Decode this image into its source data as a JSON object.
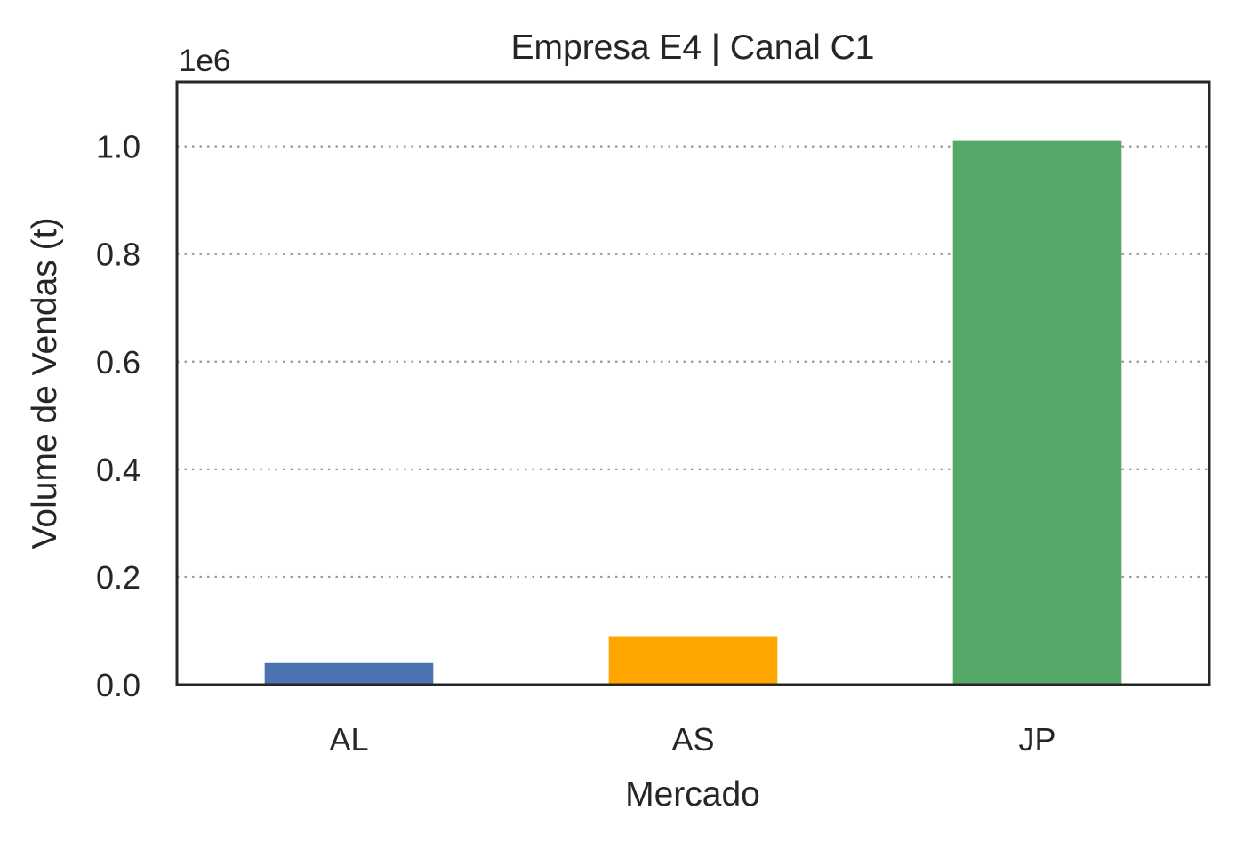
{
  "chart_data": {
    "type": "bar",
    "title": "Empresa E4 | Canal C1",
    "xlabel": "Mercado",
    "ylabel": "Volume de Vendas (t)",
    "scale_label": "1e6",
    "categories": [
      "AL",
      "AS",
      "JP"
    ],
    "values": [
      40000,
      90000,
      1010000
    ],
    "colors": [
      "#4c72b0",
      "#ffa500",
      "#55a868"
    ],
    "ylim": [
      0,
      1120000
    ],
    "yticks": [
      0,
      200000,
      400000,
      600000,
      800000,
      1000000
    ],
    "ytick_labels": [
      "0.0",
      "0.2",
      "0.4",
      "0.6",
      "0.8",
      "1.0"
    ],
    "grid": "y-dotted",
    "legend": "none"
  }
}
